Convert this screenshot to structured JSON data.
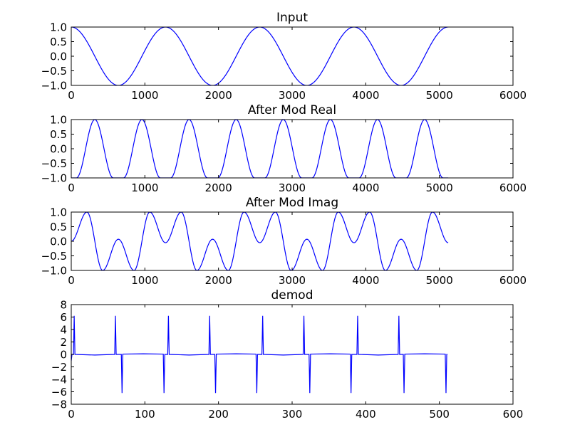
{
  "chart_data": [
    {
      "type": "line",
      "title": "Input",
      "xlim": [
        0,
        6000
      ],
      "ylim": [
        -1.0,
        1.0
      ],
      "xticks": [
        0,
        1000,
        2000,
        3000,
        4000,
        5000,
        6000
      ],
      "xticklabels": [
        "0",
        "1000",
        "2000",
        "3000",
        "4000",
        "5000",
        "6000"
      ],
      "yticks": [
        -1.0,
        -0.5,
        0.0,
        0.5,
        1.0
      ],
      "yticklabels": [
        "−1.0",
        "−0.5",
        "0.0",
        "0.5",
        "1.0"
      ],
      "grid": false,
      "color": "#0000ff",
      "interpolation": "smooth",
      "points": [
        [
          0,
          1
        ],
        [
          640,
          -1
        ],
        [
          1280,
          1
        ],
        [
          1920,
          -1
        ],
        [
          2560,
          1
        ],
        [
          3200,
          -1
        ],
        [
          3840,
          1
        ],
        [
          4480,
          -1
        ],
        [
          5120,
          1
        ]
      ]
    },
    {
      "type": "line",
      "title": "After Mod Real",
      "xlim": [
        0,
        6000
      ],
      "ylim": [
        -1.0,
        1.0
      ],
      "xticks": [
        0,
        1000,
        2000,
        3000,
        4000,
        5000,
        6000
      ],
      "xticklabels": [
        "0",
        "1000",
        "2000",
        "3000",
        "4000",
        "5000",
        "6000"
      ],
      "yticks": [
        -1.0,
        -0.5,
        0.0,
        0.5,
        1.0
      ],
      "yticklabels": [
        "−1.0",
        "−0.5",
        "0.0",
        "0.5",
        "1.0"
      ],
      "grid": false,
      "color": "#0000ff",
      "interpolation": "smooth",
      "points": [
        [
          0,
          -1
        ],
        [
          70,
          -1
        ],
        [
          320,
          1
        ],
        [
          570,
          -1
        ],
        [
          710,
          -1
        ],
        [
          960,
          1
        ],
        [
          1210,
          -1
        ],
        [
          1350,
          -1
        ],
        [
          1600,
          1
        ],
        [
          1850,
          -1
        ],
        [
          1990,
          -1
        ],
        [
          2240,
          1
        ],
        [
          2490,
          -1
        ],
        [
          2630,
          -1
        ],
        [
          2880,
          1
        ],
        [
          3130,
          -1
        ],
        [
          3270,
          -1
        ],
        [
          3520,
          1
        ],
        [
          3770,
          -1
        ],
        [
          3910,
          -1
        ],
        [
          4160,
          1
        ],
        [
          4410,
          -1
        ],
        [
          4550,
          -1
        ],
        [
          4800,
          1
        ],
        [
          5050,
          -1
        ],
        [
          5120,
          -1
        ]
      ]
    },
    {
      "type": "line",
      "title": "After Mod Imag",
      "xlim": [
        0,
        6000
      ],
      "ylim": [
        -1.0,
        1.0
      ],
      "xticks": [
        0,
        1000,
        2000,
        3000,
        4000,
        5000,
        6000
      ],
      "xticklabels": [
        "0",
        "1000",
        "2000",
        "3000",
        "4000",
        "5000",
        "6000"
      ],
      "yticks": [
        -1.0,
        -0.5,
        0.0,
        0.5,
        1.0
      ],
      "yticklabels": [
        "−1.0",
        "−0.5",
        "0.0",
        "0.5",
        "1.0"
      ],
      "grid": false,
      "color": "#0000ff",
      "interpolation": "smooth",
      "points": [
        [
          0,
          0
        ],
        [
          213,
          1
        ],
        [
          427,
          -1
        ],
        [
          640,
          0.07
        ],
        [
          853,
          -1
        ],
        [
          1067,
          1
        ],
        [
          1280,
          -0.05
        ],
        [
          1493,
          1
        ],
        [
          1707,
          -1
        ],
        [
          1920,
          0.07
        ],
        [
          2133,
          -1
        ],
        [
          2347,
          1
        ],
        [
          2560,
          -0.05
        ],
        [
          2773,
          1
        ],
        [
          2987,
          -1
        ],
        [
          3200,
          0.07
        ],
        [
          3413,
          -1
        ],
        [
          3627,
          1
        ],
        [
          3840,
          -0.05
        ],
        [
          4053,
          1
        ],
        [
          4267,
          -1
        ],
        [
          4480,
          0.07
        ],
        [
          4693,
          -1
        ],
        [
          4907,
          1
        ],
        [
          5120,
          -0.05
        ]
      ]
    },
    {
      "type": "line",
      "title": "demod",
      "xlim": [
        0,
        600
      ],
      "ylim": [
        -8,
        8
      ],
      "xticks": [
        0,
        100,
        200,
        300,
        400,
        500,
        600
      ],
      "xticklabels": [
        "0",
        "100",
        "200",
        "300",
        "400",
        "500",
        "600"
      ],
      "yticks": [
        -8,
        -6,
        -4,
        -2,
        0,
        2,
        4,
        6,
        8
      ],
      "yticklabels": [
        "−8",
        "−6",
        "−4",
        "−2",
        "0",
        "2",
        "4",
        "6",
        "8"
      ],
      "grid": false,
      "color": "#0000ff",
      "interpolation": "linear",
      "points": [
        [
          0,
          -1
        ],
        [
          1,
          0
        ],
        [
          3,
          0
        ],
        [
          4,
          6.2
        ],
        [
          5,
          0
        ],
        [
          32,
          -0.1
        ],
        [
          59,
          0
        ],
        [
          60,
          6.2
        ],
        [
          61,
          0
        ],
        [
          68,
          0
        ],
        [
          69,
          -6.2
        ],
        [
          70,
          0.05
        ],
        [
          98,
          0.1
        ],
        [
          125,
          0.05
        ],
        [
          126,
          -6.2
        ],
        [
          127,
          0
        ],
        [
          131,
          0
        ],
        [
          132,
          6.2
        ],
        [
          133,
          0
        ],
        [
          160,
          -0.1
        ],
        [
          187,
          0
        ],
        [
          188,
          6.2
        ],
        [
          189,
          0
        ],
        [
          195,
          0
        ],
        [
          196,
          -6.2
        ],
        [
          197,
          0.05
        ],
        [
          224,
          0.1
        ],
        [
          251,
          0.05
        ],
        [
          252,
          -6.2
        ],
        [
          253,
          0
        ],
        [
          259,
          0
        ],
        [
          260,
          6.2
        ],
        [
          261,
          0
        ],
        [
          288,
          -0.1
        ],
        [
          315,
          0
        ],
        [
          316,
          6.2
        ],
        [
          317,
          0
        ],
        [
          323,
          0
        ],
        [
          324,
          -6.2
        ],
        [
          325,
          0.05
        ],
        [
          352,
          0.1
        ],
        [
          379,
          0.05
        ],
        [
          380,
          -6.2
        ],
        [
          381,
          0
        ],
        [
          388,
          0
        ],
        [
          389,
          6.2
        ],
        [
          390,
          0
        ],
        [
          417,
          -0.1
        ],
        [
          444,
          0
        ],
        [
          445,
          6.2
        ],
        [
          446,
          0
        ],
        [
          451,
          0
        ],
        [
          452,
          -6.2
        ],
        [
          453,
          0.05
        ],
        [
          480,
          0.1
        ],
        [
          508,
          0.05
        ],
        [
          509,
          -6.2
        ],
        [
          510,
          0
        ],
        [
          511,
          0
        ]
      ]
    }
  ]
}
